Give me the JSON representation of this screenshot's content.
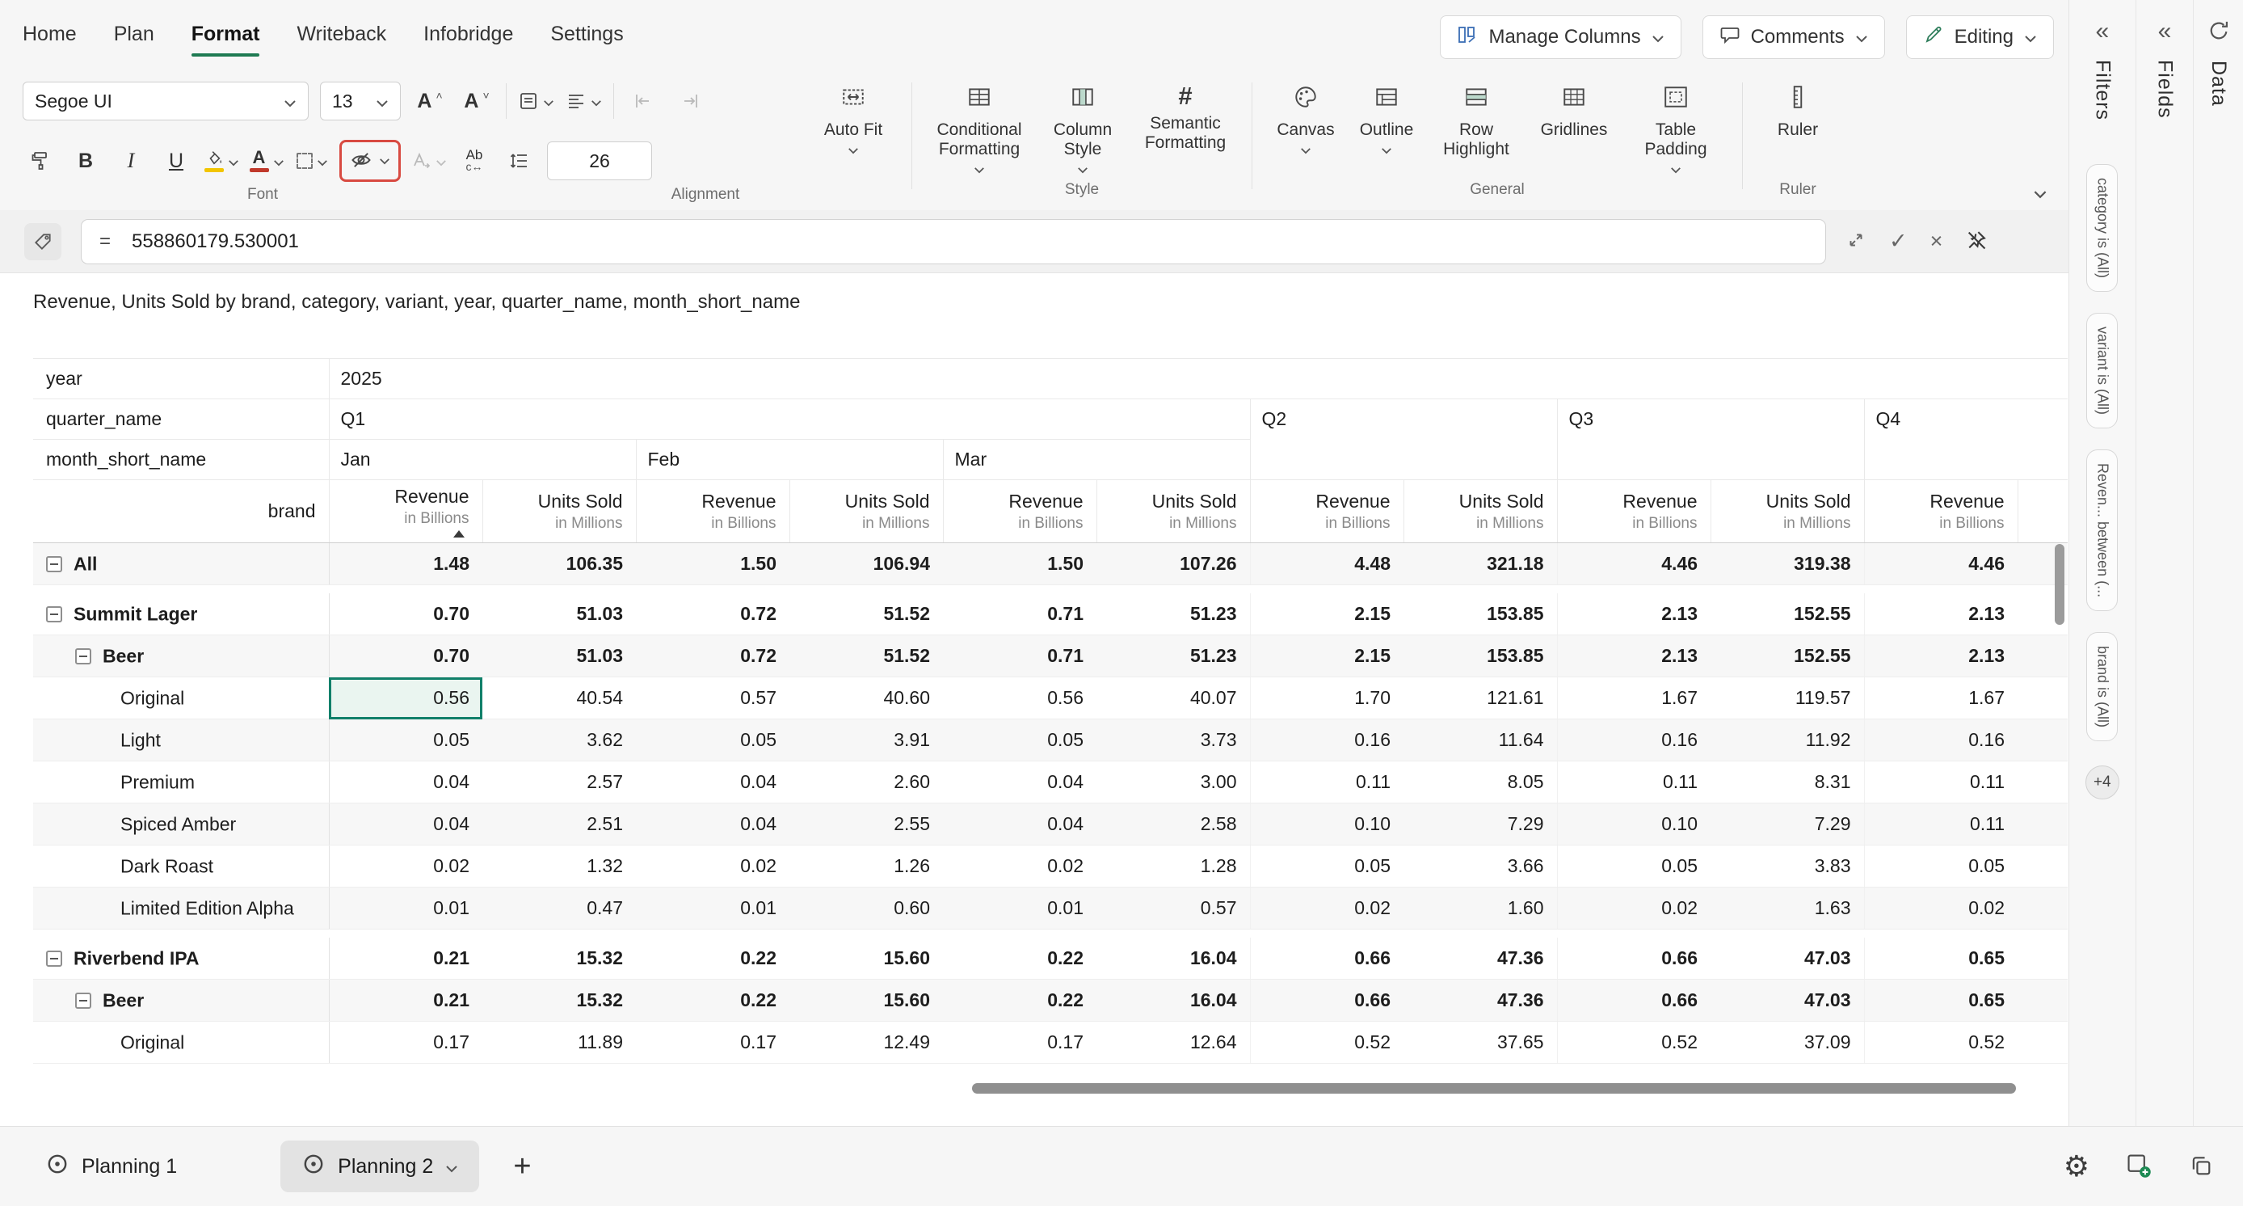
{
  "colors": {
    "accent_green": "#1e7a52",
    "selection_teal": "#11806a",
    "attention_red": "#d84a41"
  },
  "menubar": {
    "items": [
      {
        "label": "Home",
        "active": false
      },
      {
        "label": "Plan",
        "active": false
      },
      {
        "label": "Format",
        "active": true
      },
      {
        "label": "Writeback",
        "active": false
      },
      {
        "label": "Infobridge",
        "active": false
      },
      {
        "label": "Settings",
        "active": false
      }
    ]
  },
  "topbar_controls": {
    "manage_columns": "Manage Columns",
    "comments": "Comments",
    "editing": "Editing"
  },
  "ribbon": {
    "font_name": "Segoe UI",
    "font_size": "13",
    "spacing_value": "26",
    "auto_fit": "Auto Fit",
    "buttons": {
      "conditional_formatting": "Conditional Formatting",
      "column_style": "Column Style",
      "semantic_formatting": "Semantic Formatting",
      "canvas": "Canvas",
      "outline": "Outline",
      "row_highlight": "Row Highlight",
      "gridlines": "Gridlines",
      "table_padding": "Table Padding",
      "ruler": "Ruler"
    },
    "group_labels": {
      "font": "Font",
      "alignment": "Alignment",
      "style": "Style",
      "general": "General",
      "ruler": "Ruler"
    }
  },
  "formula_bar": {
    "prefix": "=",
    "value": "558860179.530001"
  },
  "sheet": {
    "title": "Revenue, Units Sold by brand, category, variant, year, quarter_name, month_short_name",
    "pivot": {
      "year_label": "year",
      "year_value": "2025",
      "quarter_label": "quarter_name",
      "month_label": "month_short_name",
      "brand_label": "brand",
      "quarters": [
        "Q1",
        "Q2",
        "Q3",
        "Q4"
      ],
      "months": [
        "Jan",
        "Feb",
        "Mar"
      ],
      "measures": [
        {
          "name": "Revenue",
          "unit": "in Billions"
        },
        {
          "name": "Units Sold",
          "unit": "in Millions"
        }
      ],
      "rows": [
        {
          "label": "All",
          "level": 0,
          "collapse": true,
          "bold": true,
          "values": [
            "1.48",
            "106.35",
            "1.50",
            "106.94",
            "1.50",
            "107.26",
            "4.48",
            "321.18",
            "4.46",
            "319.38",
            "4.46"
          ]
        },
        {
          "label": "Summit Lager",
          "level": 0,
          "collapse": true,
          "bold": true,
          "gap": true,
          "values": [
            "0.70",
            "51.03",
            "0.72",
            "51.52",
            "0.71",
            "51.23",
            "2.15",
            "153.85",
            "2.13",
            "152.55",
            "2.13"
          ]
        },
        {
          "label": "Beer",
          "level": 1,
          "collapse": true,
          "bold": true,
          "values": [
            "0.70",
            "51.03",
            "0.72",
            "51.52",
            "0.71",
            "51.23",
            "2.15",
            "153.85",
            "2.13",
            "152.55",
            "2.13"
          ]
        },
        {
          "label": "Original",
          "level": 2,
          "collapse": false,
          "bold": false,
          "selected_col": 0,
          "values": [
            "0.56",
            "40.54",
            "0.57",
            "40.60",
            "0.56",
            "40.07",
            "1.70",
            "121.61",
            "1.67",
            "119.57",
            "1.67"
          ]
        },
        {
          "label": "Light",
          "level": 2,
          "collapse": false,
          "bold": false,
          "values": [
            "0.05",
            "3.62",
            "0.05",
            "3.91",
            "0.05",
            "3.73",
            "0.16",
            "11.64",
            "0.16",
            "11.92",
            "0.16"
          ]
        },
        {
          "label": "Premium",
          "level": 2,
          "collapse": false,
          "bold": false,
          "values": [
            "0.04",
            "2.57",
            "0.04",
            "2.60",
            "0.04",
            "3.00",
            "0.11",
            "8.05",
            "0.11",
            "8.31",
            "0.11"
          ]
        },
        {
          "label": "Spiced Amber",
          "level": 2,
          "collapse": false,
          "bold": false,
          "values": [
            "0.04",
            "2.51",
            "0.04",
            "2.55",
            "0.04",
            "2.58",
            "0.10",
            "7.29",
            "0.10",
            "7.29",
            "0.11"
          ]
        },
        {
          "label": "Dark Roast",
          "level": 2,
          "collapse": false,
          "bold": false,
          "values": [
            "0.02",
            "1.32",
            "0.02",
            "1.26",
            "0.02",
            "1.28",
            "0.05",
            "3.66",
            "0.05",
            "3.83",
            "0.05"
          ]
        },
        {
          "label": "Limited Edition Alpha",
          "level": 2,
          "collapse": false,
          "bold": false,
          "values": [
            "0.01",
            "0.47",
            "0.01",
            "0.60",
            "0.01",
            "0.57",
            "0.02",
            "1.60",
            "0.02",
            "1.63",
            "0.02"
          ]
        },
        {
          "label": "Riverbend IPA",
          "level": 0,
          "collapse": true,
          "bold": true,
          "gap": true,
          "values": [
            "0.21",
            "15.32",
            "0.22",
            "15.60",
            "0.22",
            "16.04",
            "0.66",
            "47.36",
            "0.66",
            "47.03",
            "0.65"
          ]
        },
        {
          "label": "Beer",
          "level": 1,
          "collapse": true,
          "bold": true,
          "values": [
            "0.21",
            "15.32",
            "0.22",
            "15.60",
            "0.22",
            "16.04",
            "0.66",
            "47.36",
            "0.66",
            "47.03",
            "0.65"
          ]
        },
        {
          "label": "Original",
          "level": 2,
          "collapse": false,
          "bold": false,
          "values": [
            "0.17",
            "11.89",
            "0.17",
            "12.49",
            "0.17",
            "12.64",
            "0.52",
            "37.65",
            "0.52",
            "37.09",
            "0.52"
          ]
        }
      ]
    }
  },
  "right_panel": {
    "filters_tab": "Filters",
    "fields_tab": "Fields",
    "data_tab": "Data",
    "filter_pills": [
      "category is (All)",
      "variant is (All)",
      "Reven... between (...",
      "brand is (All)"
    ],
    "more_badge": "+4"
  },
  "bottom_bar": {
    "sheets": [
      {
        "label": "Planning 1",
        "active": false
      },
      {
        "label": "Planning 2",
        "active": true
      }
    ],
    "add_label": "+"
  }
}
